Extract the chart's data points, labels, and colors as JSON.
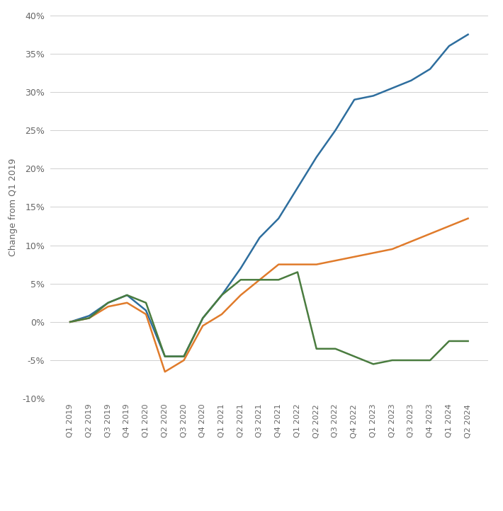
{
  "quarters": [
    "Q1 2019",
    "Q2 2019",
    "Q3 2019",
    "Q4 2019",
    "Q1 2020",
    "Q2 2020",
    "Q3 2020",
    "Q4 2020",
    "Q1 2021",
    "Q2 2021",
    "Q3 2021",
    "Q4 2021",
    "Q1 2022",
    "Q2 2022",
    "Q3 2022",
    "Q4 2022",
    "Q1 2023",
    "Q2 2023",
    "Q3 2023",
    "Q4 2023",
    "Q1 2024",
    "Q2 2024"
  ],
  "nominal_gdp": [
    0.0,
    0.8,
    2.5,
    3.5,
    1.5,
    -4.5,
    -4.5,
    0.5,
    3.5,
    7.0,
    11.0,
    13.5,
    17.5,
    21.5,
    25.0,
    29.0,
    29.5,
    30.5,
    31.5,
    33.0,
    36.0,
    37.5
  ],
  "real_gdp": [
    0.0,
    0.5,
    2.0,
    2.5,
    1.0,
    -6.5,
    -5.0,
    -0.5,
    1.0,
    3.5,
    5.5,
    7.5,
    7.5,
    7.5,
    8.0,
    8.5,
    9.0,
    9.5,
    10.5,
    11.5,
    12.5,
    13.5
  ],
  "adjusted_real_gdp": [
    0.0,
    0.5,
    2.5,
    3.5,
    2.5,
    -4.5,
    -4.5,
    0.5,
    3.5,
    5.5,
    5.5,
    5.5,
    6.5,
    -3.5,
    -3.5,
    -4.5,
    -5.5,
    -5.0,
    -5.0,
    -5.0,
    -2.5,
    -2.5
  ],
  "nominal_color": "#2E6E9E",
  "real_color": "#E07B2B",
  "adjusted_color": "#4A7C3F",
  "ylabel": "Change from Q1 2019",
  "ylim": [
    -10,
    40
  ],
  "yticks": [
    -10,
    -5,
    0,
    5,
    10,
    15,
    20,
    25,
    30,
    35,
    40
  ],
  "bg_color": "#ffffff",
  "grid_color": "#d0d0d0",
  "line_width": 1.8
}
